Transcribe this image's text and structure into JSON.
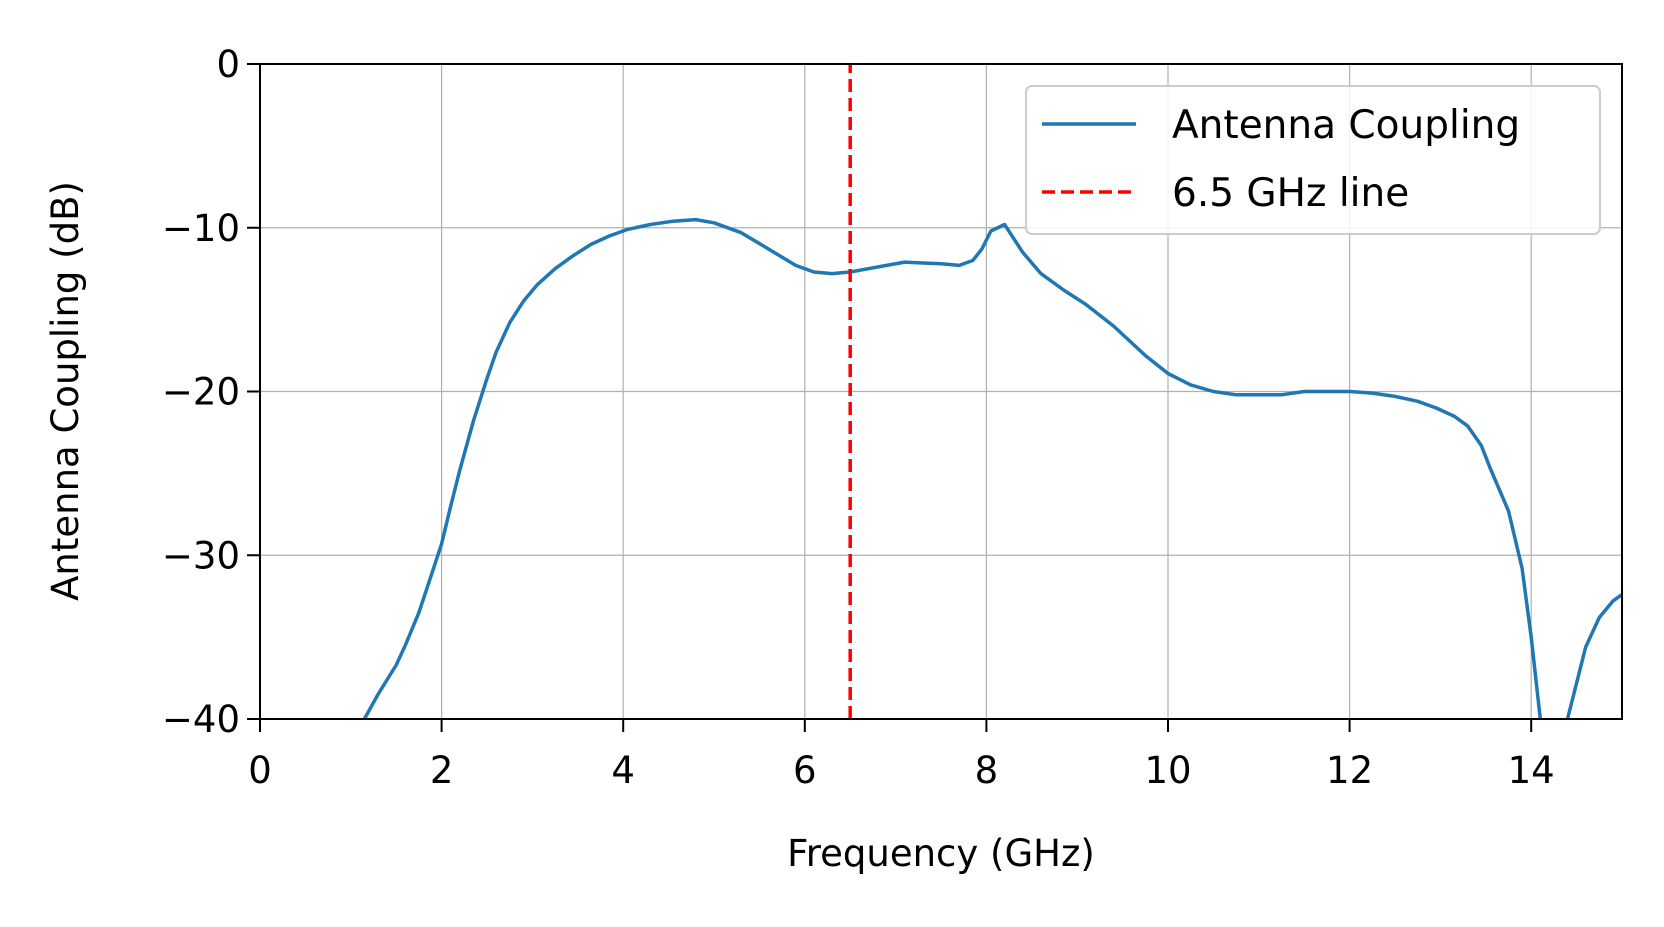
{
  "chart_data": {
    "type": "line",
    "xlabel": "Frequency (GHz)",
    "ylabel": "Antenna Coupling (dB)",
    "xlim": [
      0,
      15
    ],
    "ylim": [
      -40,
      0
    ],
    "xticks": [
      0,
      2,
      4,
      6,
      8,
      10,
      12,
      14
    ],
    "yticks": [
      0,
      -10,
      -20,
      -30,
      -40
    ],
    "xtick_labels": [
      "0",
      "2",
      "4",
      "6",
      "8",
      "10",
      "12",
      "14"
    ],
    "ytick_labels": [
      "0",
      "−10",
      "−20",
      "−30",
      "−40"
    ],
    "grid": true,
    "legend_position": "top-right",
    "series": [
      {
        "name": "Antenna Coupling",
        "color": "#1f77b4",
        "style": "solid",
        "x": [
          1.15,
          1.3,
          1.5,
          1.6,
          1.75,
          1.9,
          2.0,
          2.1,
          2.2,
          2.35,
          2.5,
          2.6,
          2.75,
          2.9,
          3.05,
          3.25,
          3.45,
          3.65,
          3.85,
          4.05,
          4.3,
          4.55,
          4.8,
          5.0,
          5.3,
          5.6,
          5.9,
          6.1,
          6.3,
          6.5,
          6.7,
          6.9,
          7.1,
          7.3,
          7.5,
          7.7,
          7.85,
          7.95,
          8.05,
          8.2,
          8.4,
          8.6,
          8.85,
          9.1,
          9.4,
          9.75,
          10.0,
          10.25,
          10.5,
          10.75,
          11.0,
          11.25,
          11.5,
          11.75,
          12.0,
          12.25,
          12.5,
          12.75,
          12.95,
          13.15,
          13.3,
          13.45,
          13.55,
          13.75,
          13.9,
          14.0,
          14.1,
          14.2,
          14.4,
          14.6,
          14.75,
          14.9,
          15.0
        ],
        "values": [
          -40.0,
          -38.5,
          -36.7,
          -35.5,
          -33.5,
          -31.0,
          -29.3,
          -27.0,
          -24.8,
          -21.8,
          -19.2,
          -17.6,
          -15.8,
          -14.5,
          -13.5,
          -12.5,
          -11.7,
          -11.0,
          -10.5,
          -10.1,
          -9.8,
          -9.6,
          -9.5,
          -9.7,
          -10.3,
          -11.3,
          -12.3,
          -12.7,
          -12.8,
          -12.7,
          -12.5,
          -12.3,
          -12.1,
          -12.15,
          -12.2,
          -12.3,
          -12.0,
          -11.3,
          -10.2,
          -9.8,
          -11.5,
          -12.8,
          -13.8,
          -14.7,
          -16.0,
          -17.8,
          -18.9,
          -19.6,
          -20.0,
          -20.2,
          -20.2,
          -20.2,
          -20.0,
          -20.0,
          -20.0,
          -20.1,
          -20.3,
          -20.6,
          -21.0,
          -21.5,
          -22.1,
          -23.3,
          -24.7,
          -27.3,
          -30.8,
          -35.0,
          -40.0,
          -41.5,
          -40.0,
          -35.6,
          -33.8,
          -32.8,
          -32.4
        ]
      },
      {
        "name": "6.5 GHz line",
        "color": "#ff0000",
        "style": "dashed",
        "x": [
          6.5,
          6.5
        ],
        "values": [
          -40,
          0
        ]
      }
    ]
  }
}
